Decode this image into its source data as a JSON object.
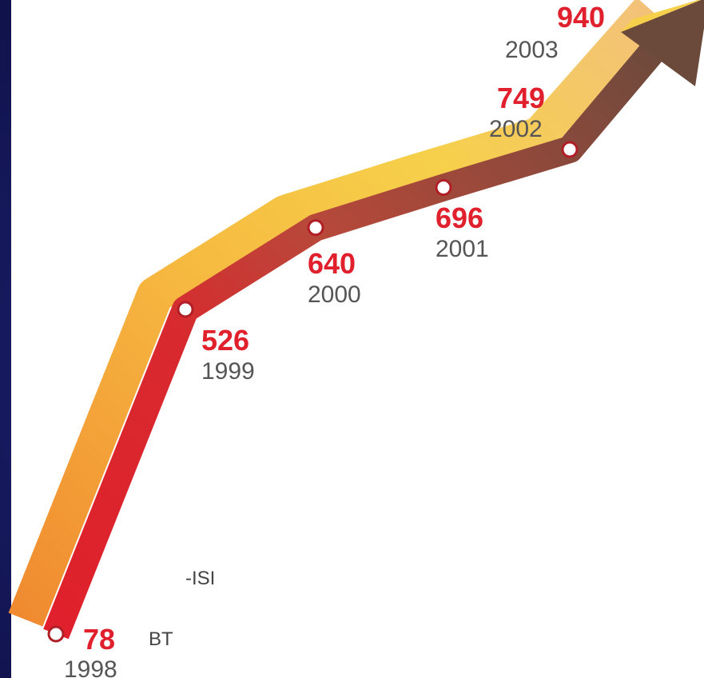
{
  "chart_data": {
    "type": "line",
    "x": [
      "1998",
      "1999",
      "2000",
      "2001",
      "2002",
      "2003"
    ],
    "series": [
      {
        "values": [
          78,
          526,
          640,
          696,
          749,
          940
        ]
      }
    ],
    "data_labels": [
      "78",
      "526",
      "640",
      "696",
      "749",
      "940"
    ],
    "annotations": [
      "BT",
      "-ISI"
    ],
    "colors": {
      "front_band": "#e0202c",
      "back_band_low": "#f5a040",
      "back_band_high": "#f6d04a",
      "arrow_head": "#6b4a3c",
      "marker": "#ffffff"
    }
  }
}
